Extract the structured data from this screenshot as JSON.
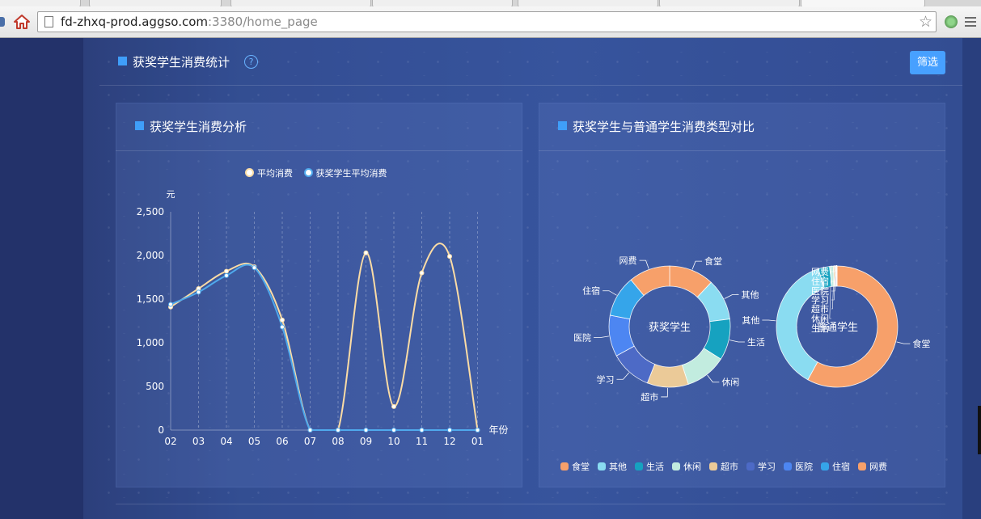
{
  "browser": {
    "url_host": "fd-zhxq-prod.aggso.com",
    "url_path": ":3380/home_page"
  },
  "section": {
    "title": "获奖学生消费统计",
    "help_symbol": "?",
    "filter_label": "筛选"
  },
  "colors": {
    "accent": "#3f9ef9",
    "button": "#47a0ff",
    "line_avg": "#fbdca5",
    "line_award": "#4fa9ec"
  },
  "line_panel": {
    "title": "获奖学生消费分析",
    "chart_data": {
      "type": "line",
      "categories": [
        "02",
        "03",
        "04",
        "05",
        "06",
        "07",
        "08",
        "09",
        "10",
        "11",
        "12",
        "01"
      ],
      "ylabel": "元",
      "xlabel": "年份",
      "ylim": [
        0,
        2500
      ],
      "yticks": [
        "0",
        "500",
        "1,000",
        "1,500",
        "2,000",
        "2,500"
      ],
      "grid": "vertical dashed",
      "legend_position": "top-center",
      "series": [
        {
          "name": "平均消费",
          "color": "#fbdca5",
          "values": [
            1410,
            1620,
            1820,
            1870,
            1260,
            0,
            0,
            2030,
            270,
            1800,
            1990,
            0
          ]
        },
        {
          "name": "获奖学生平均消费",
          "color": "#4fa9ec",
          "values": [
            1440,
            1580,
            1770,
            1860,
            1180,
            0,
            0,
            0,
            0,
            0,
            0,
            0
          ]
        }
      ]
    }
  },
  "pie_panel": {
    "title": "获奖学生与普通学生消费类型对比",
    "chart_data": [
      {
        "type": "pie",
        "center_label": "获奖学生",
        "slices": [
          {
            "name": "食堂",
            "value": 12,
            "color": "#f7a06a"
          },
          {
            "name": "其他",
            "value": 11,
            "color": "#8adcf1"
          },
          {
            "name": "生活",
            "value": 11,
            "color": "#16a2c0"
          },
          {
            "name": "休闲",
            "value": 11,
            "color": "#c2ecdf"
          },
          {
            "name": "超市",
            "value": 11,
            "color": "#ebca98"
          },
          {
            "name": "学习",
            "value": 11,
            "color": "#4d6ac6"
          },
          {
            "name": "医院",
            "value": 11,
            "color": "#4d86f2"
          },
          {
            "name": "住宿",
            "value": 11,
            "color": "#35a5ea"
          },
          {
            "name": "网费",
            "value": 11,
            "color": "#f7a06a"
          }
        ]
      },
      {
        "type": "pie",
        "center_label": "普通学生",
        "slices": [
          {
            "name": "食堂",
            "value": 58,
            "color": "#f7a06a"
          },
          {
            "name": "其他",
            "value": 37,
            "color": "#8adcf1"
          },
          {
            "name": "生活",
            "value": 3,
            "color": "#16a2c0"
          },
          {
            "name": "休闲",
            "value": 1,
            "color": "#c2ecdf"
          },
          {
            "name": "超市",
            "value": 0.5,
            "color": "#ebca98"
          },
          {
            "name": "学习",
            "value": 0.3,
            "color": "#4d6ac6"
          },
          {
            "name": "医院",
            "value": 0.1,
            "color": "#4d86f2"
          },
          {
            "name": "住宿",
            "value": 0.05,
            "color": "#35a5ea"
          },
          {
            "name": "网费",
            "value": 0.05,
            "color": "#f7a06a"
          }
        ]
      }
    ],
    "legend": [
      {
        "name": "食堂",
        "color": "#f7a06a"
      },
      {
        "name": "其他",
        "color": "#8adcf1"
      },
      {
        "name": "生活",
        "color": "#16a2c0"
      },
      {
        "name": "休闲",
        "color": "#c2ecdf"
      },
      {
        "name": "超市",
        "color": "#ebca98"
      },
      {
        "name": "学习",
        "color": "#4d6ac6"
      },
      {
        "name": "医院",
        "color": "#4d86f2"
      },
      {
        "name": "住宿",
        "color": "#35a5ea"
      },
      {
        "name": "网费",
        "color": "#f7a06a"
      }
    ]
  }
}
